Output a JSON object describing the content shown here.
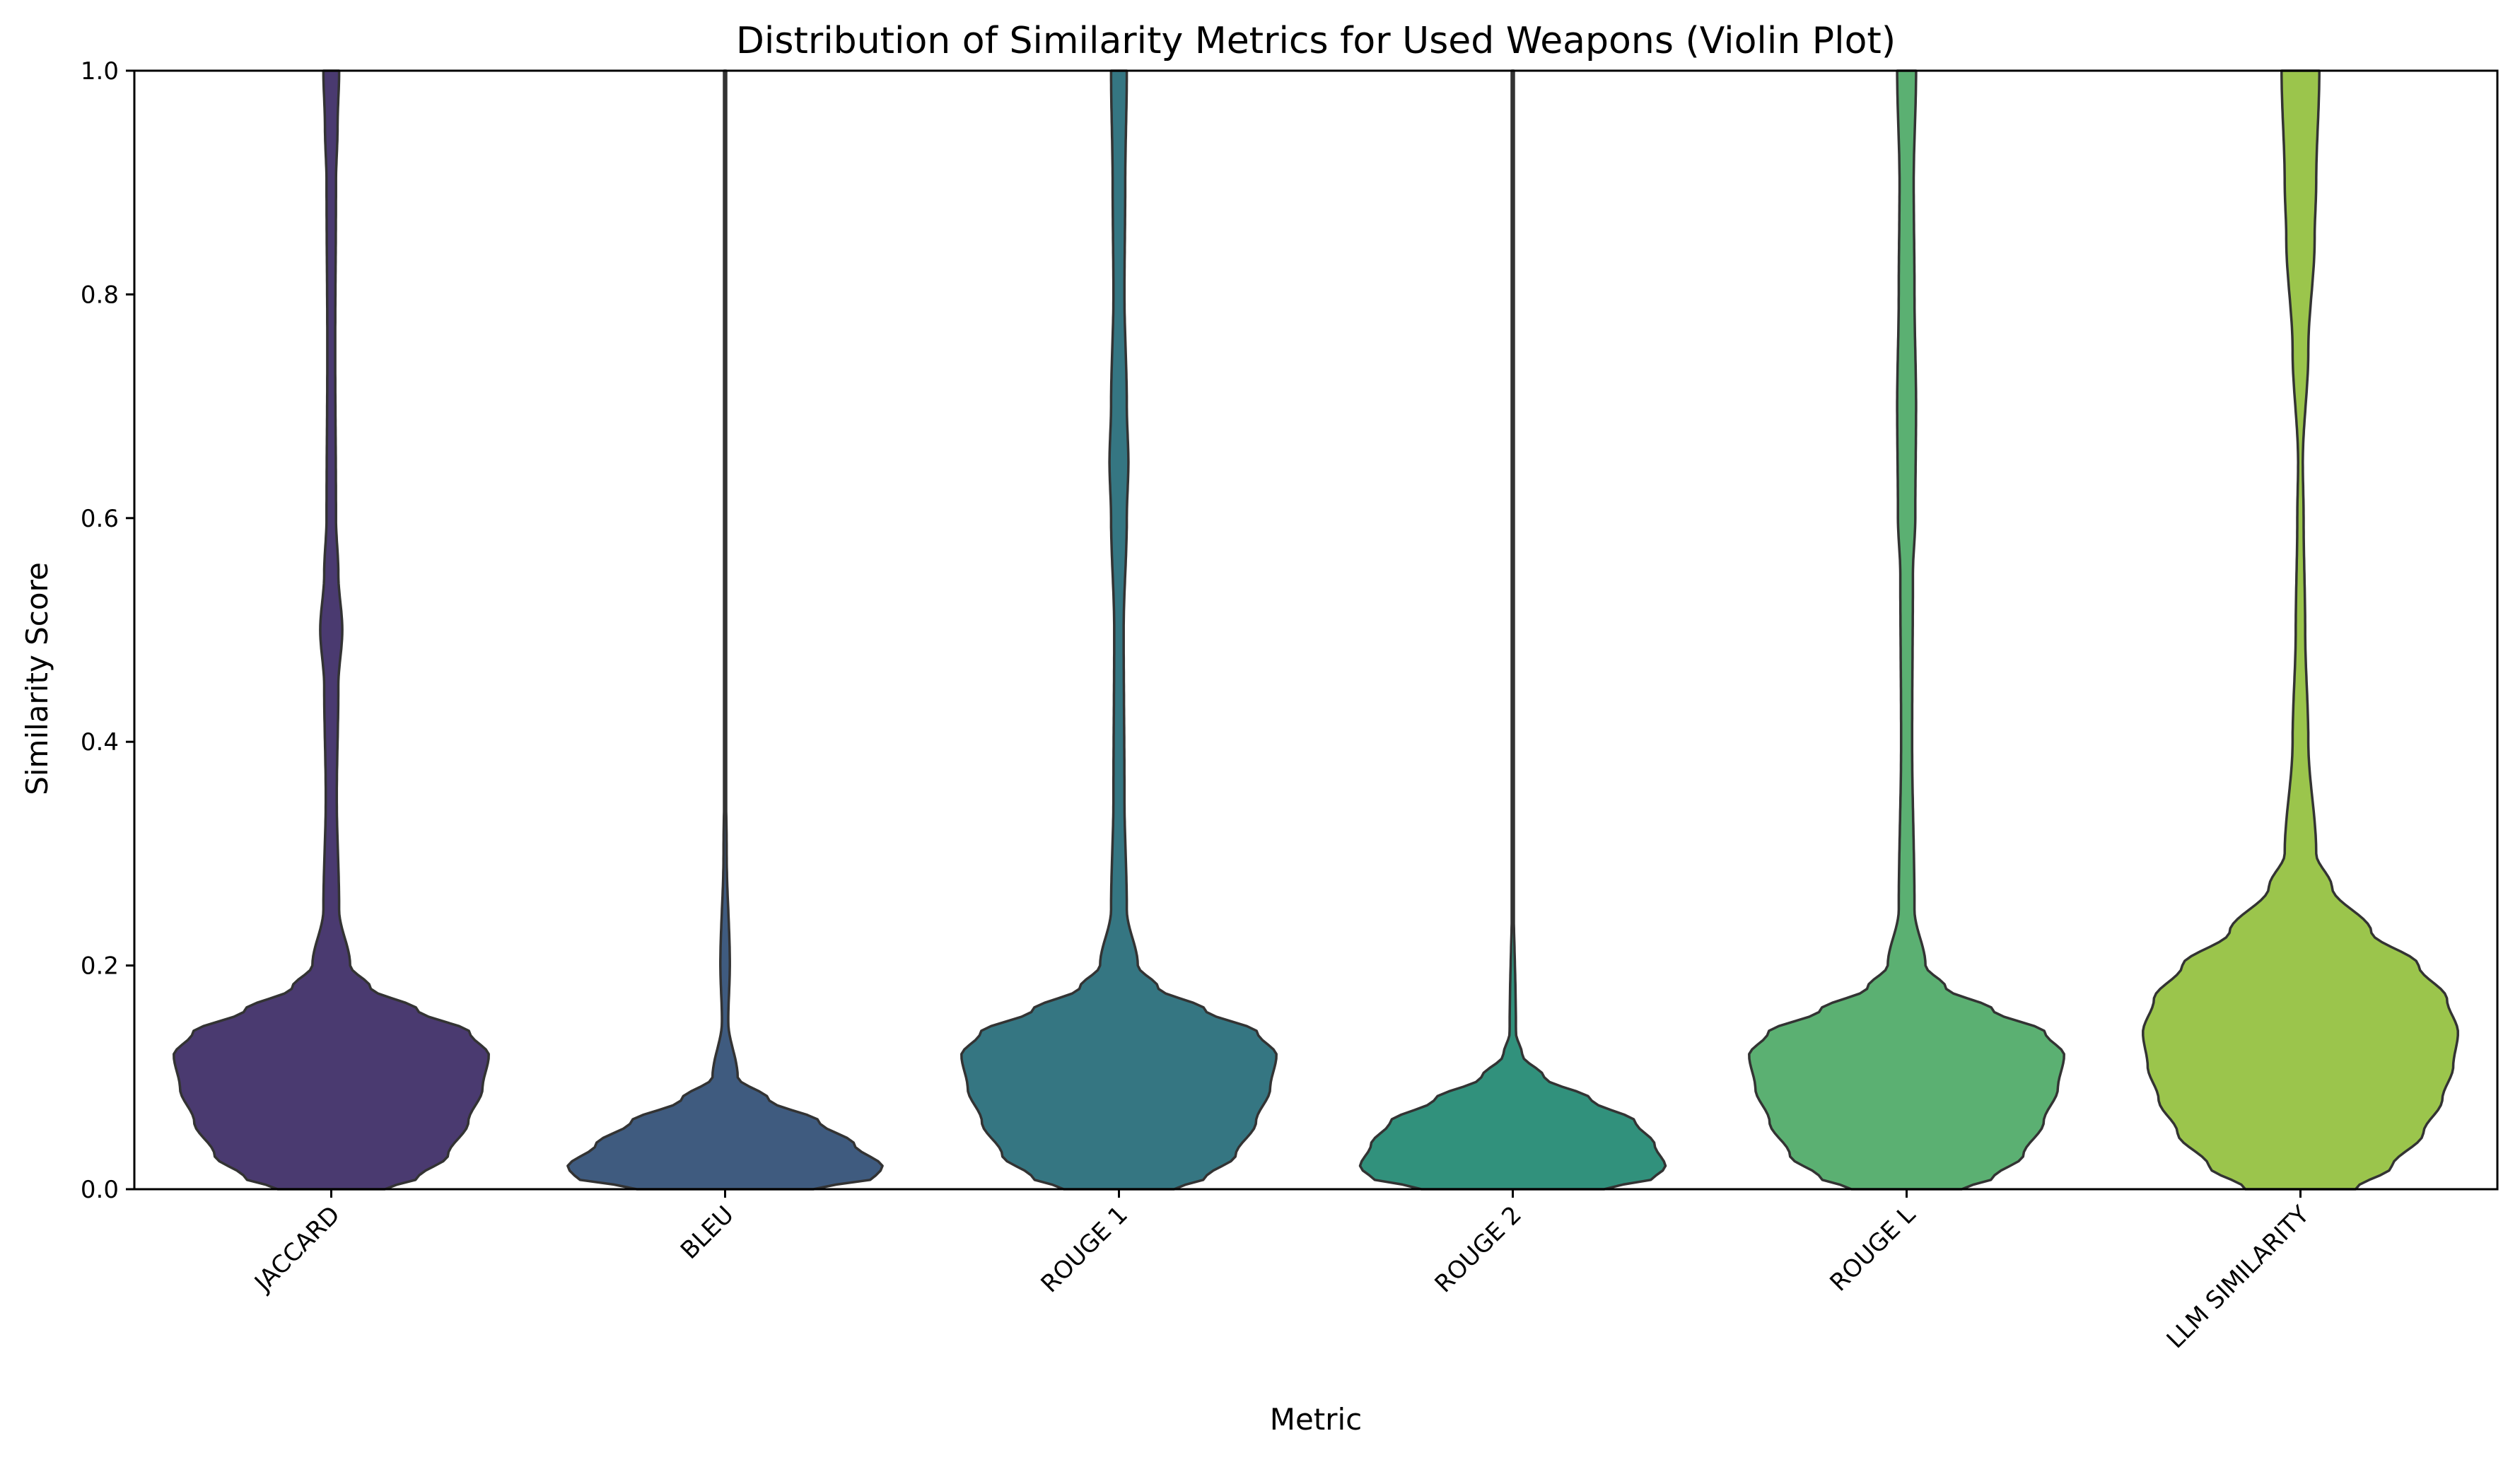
{
  "chart_data": {
    "type": "violin",
    "title": "Distribution of Similarity Metrics for Used Weapons (Violin Plot)",
    "xlabel": "Metric",
    "ylabel": "Similarity Score",
    "ylim": [
      0,
      1
    ],
    "y_ticks": [
      "0.0",
      "0.2",
      "0.4",
      "0.6",
      "0.8",
      "1.0"
    ],
    "grid": false,
    "categories": [
      "JACCARD",
      "BLEU",
      "ROUGE 1",
      "ROUGE 2",
      "ROUGE L",
      "LLM SIMILARITY"
    ],
    "colors": [
      "#4a3a70",
      "#3f5b7f",
      "#357682",
      "#31917c",
      "#5bb072",
      "#9bc54c"
    ],
    "edge_color": "#333333",
    "density_profiles": [
      [
        [
          0,
          0.34
        ],
        [
          0.01,
          0.55
        ],
        [
          0.03,
          0.74
        ],
        [
          0.06,
          0.87
        ],
        [
          0.09,
          0.96
        ],
        [
          0.12,
          1.0
        ],
        [
          0.14,
          0.88
        ],
        [
          0.16,
          0.55
        ],
        [
          0.18,
          0.25
        ],
        [
          0.2,
          0.12
        ],
        [
          0.25,
          0.05
        ],
        [
          0.35,
          0.035
        ],
        [
          0.45,
          0.045
        ],
        [
          0.5,
          0.07
        ],
        [
          0.55,
          0.045
        ],
        [
          0.6,
          0.03
        ],
        [
          0.75,
          0.025
        ],
        [
          0.9,
          0.03
        ],
        [
          0.95,
          0.04
        ],
        [
          1.0,
          0.05
        ]
      ],
      [
        [
          0,
          0.56
        ],
        [
          0.01,
          0.95
        ],
        [
          0.02,
          1.0
        ],
        [
          0.04,
          0.82
        ],
        [
          0.06,
          0.6
        ],
        [
          0.08,
          0.28
        ],
        [
          0.1,
          0.08
        ],
        [
          0.15,
          0.02
        ],
        [
          0.2,
          0.03
        ],
        [
          0.3,
          0.01
        ],
        [
          0.4,
          0.0
        ],
        [
          1.0,
          0.0
        ]
      ],
      [
        [
          0,
          0.35
        ],
        [
          0.01,
          0.55
        ],
        [
          0.03,
          0.74
        ],
        [
          0.06,
          0.87
        ],
        [
          0.09,
          0.96
        ],
        [
          0.12,
          1.0
        ],
        [
          0.14,
          0.88
        ],
        [
          0.16,
          0.55
        ],
        [
          0.18,
          0.25
        ],
        [
          0.2,
          0.12
        ],
        [
          0.25,
          0.05
        ],
        [
          0.35,
          0.035
        ],
        [
          0.5,
          0.03
        ],
        [
          0.6,
          0.05
        ],
        [
          0.65,
          0.06
        ],
        [
          0.7,
          0.05
        ],
        [
          0.8,
          0.035
        ],
        [
          0.9,
          0.04
        ],
        [
          1.0,
          0.05
        ]
      ],
      [
        [
          0,
          0.58
        ],
        [
          0.01,
          0.9
        ],
        [
          0.02,
          0.97
        ],
        [
          0.04,
          0.9
        ],
        [
          0.06,
          0.78
        ],
        [
          0.08,
          0.5
        ],
        [
          0.1,
          0.2
        ],
        [
          0.12,
          0.06
        ],
        [
          0.14,
          0.02
        ],
        [
          0.3,
          0.0
        ],
        [
          1.0,
          0.0
        ]
      ],
      [
        [
          0,
          0.35
        ],
        [
          0.01,
          0.55
        ],
        [
          0.03,
          0.74
        ],
        [
          0.06,
          0.87
        ],
        [
          0.09,
          0.96
        ],
        [
          0.12,
          1.0
        ],
        [
          0.14,
          0.88
        ],
        [
          0.16,
          0.55
        ],
        [
          0.18,
          0.25
        ],
        [
          0.2,
          0.12
        ],
        [
          0.25,
          0.05
        ],
        [
          0.4,
          0.035
        ],
        [
          0.55,
          0.04
        ],
        [
          0.6,
          0.055
        ],
        [
          0.7,
          0.06
        ],
        [
          0.8,
          0.05
        ],
        [
          0.9,
          0.045
        ],
        [
          1.0,
          0.06
        ]
      ],
      [
        [
          0,
          0.35
        ],
        [
          0.02,
          0.58
        ],
        [
          0.05,
          0.78
        ],
        [
          0.08,
          0.9
        ],
        [
          0.11,
          0.97
        ],
        [
          0.14,
          1.0
        ],
        [
          0.17,
          0.93
        ],
        [
          0.2,
          0.75
        ],
        [
          0.23,
          0.45
        ],
        [
          0.27,
          0.2
        ],
        [
          0.3,
          0.1
        ],
        [
          0.4,
          0.05
        ],
        [
          0.5,
          0.03
        ],
        [
          0.6,
          0.02
        ],
        [
          0.65,
          0.015
        ],
        [
          0.75,
          0.05
        ],
        [
          0.85,
          0.09
        ],
        [
          0.9,
          0.1
        ],
        [
          1.0,
          0.12
        ]
      ]
    ]
  }
}
